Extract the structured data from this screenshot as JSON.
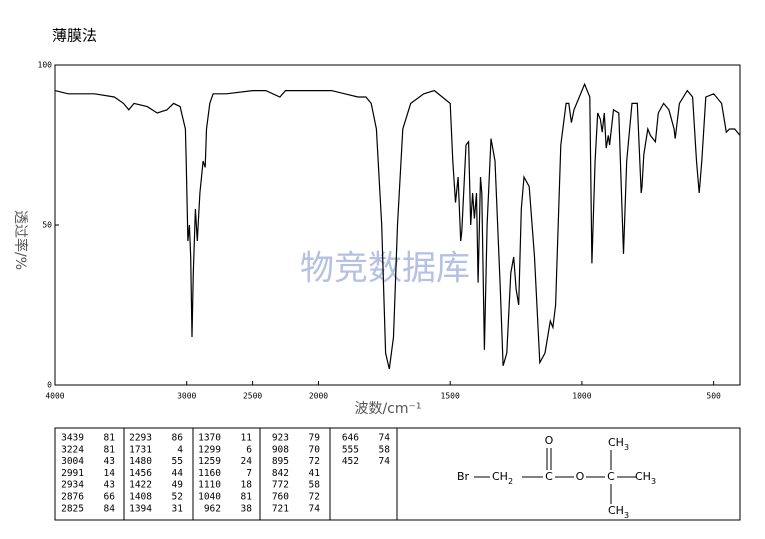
{
  "chart_data": {
    "type": "line",
    "title": "薄膜法",
    "ylabel": "透过率/%",
    "xlabel": "波数/cm⁻¹",
    "watermark": "物竞数据库",
    "xlim": [
      4000,
      400
    ],
    "x_scale_break": 2000,
    "x_scale_factor_below_break": 2,
    "xticks": [
      4000,
      3000,
      2500,
      2000,
      1500,
      1000,
      500
    ],
    "ylim": [
      0,
      100
    ],
    "yticks": [
      0,
      50,
      100
    ],
    "series": [
      {
        "name": null,
        "color": "#000000",
        "x": [
          4000,
          3900,
          3700,
          3550,
          3480,
          3440,
          3400,
          3300,
          3224,
          3150,
          3100,
          3050,
          3010,
          3004,
          2991,
          2980,
          2970,
          2960,
          2950,
          2934,
          2920,
          2900,
          2876,
          2860,
          2850,
          2825,
          2800,
          2700,
          2500,
          2400,
          2293,
          2250,
          2100,
          2000,
          1950,
          1900,
          1850,
          1820,
          1800,
          1780,
          1760,
          1745,
          1731,
          1715,
          1700,
          1680,
          1650,
          1600,
          1560,
          1500,
          1490,
          1480,
          1470,
          1460,
          1456,
          1440,
          1430,
          1422,
          1415,
          1408,
          1400,
          1394,
          1385,
          1380,
          1370,
          1360,
          1345,
          1330,
          1310,
          1299,
          1285,
          1270,
          1259,
          1250,
          1240,
          1230,
          1220,
          1200,
          1180,
          1160,
          1140,
          1120,
          1110,
          1100,
          1080,
          1060,
          1050,
          1040,
          1030,
          1010,
          990,
          970,
          962,
          950,
          940,
          930,
          923,
          915,
          908,
          900,
          895,
          880,
          860,
          842,
          830,
          810,
          790,
          775,
          772,
          765,
          750,
          740,
          721,
          710,
          690,
          670,
          650,
          646,
          630,
          600,
          580,
          565,
          555,
          545,
          530,
          500,
          470,
          452,
          440,
          420,
          400
        ],
        "values": [
          92,
          91,
          91,
          90,
          88,
          86,
          88,
          87,
          85,
          86,
          88,
          87,
          80,
          70,
          45,
          50,
          40,
          15,
          35,
          55,
          45,
          60,
          70,
          68,
          80,
          88,
          91,
          91,
          92,
          92,
          90,
          92,
          92,
          92,
          92,
          91,
          90,
          90,
          88,
          80,
          50,
          10,
          5,
          15,
          50,
          80,
          88,
          91,
          92,
          88,
          70,
          57,
          65,
          45,
          48,
          75,
          76,
          50,
          60,
          52,
          60,
          32,
          65,
          60,
          11,
          50,
          77,
          70,
          30,
          6,
          10,
          35,
          40,
          30,
          25,
          55,
          65,
          62,
          40,
          7,
          10,
          20,
          18,
          25,
          75,
          88,
          88,
          82,
          86,
          90,
          94,
          90,
          38,
          70,
          85,
          83,
          79,
          85,
          74,
          78,
          75,
          86,
          85,
          41,
          70,
          88,
          88,
          60,
          62,
          72,
          80,
          78,
          76,
          85,
          88,
          86,
          80,
          77,
          88,
          92,
          90,
          70,
          60,
          70,
          90,
          91,
          88,
          79,
          80,
          80,
          78
        ]
      }
    ]
  },
  "peak_table": [
    [
      [
        3439,
        81
      ],
      [
        3224,
        81
      ],
      [
        3004,
        43
      ],
      [
        2991,
        14
      ],
      [
        2934,
        43
      ],
      [
        2876,
        66
      ],
      [
        2825,
        84
      ]
    ],
    [
      [
        2293,
        86
      ],
      [
        1731,
        4
      ],
      [
        1480,
        55
      ],
      [
        1456,
        44
      ],
      [
        1422,
        49
      ],
      [
        1408,
        52
      ],
      [
        1394,
        31
      ]
    ],
    [
      [
        1370,
        11
      ],
      [
        1299,
        6
      ],
      [
        1259,
        24
      ],
      [
        1160,
        7
      ],
      [
        1110,
        18
      ],
      [
        1040,
        81
      ],
      [
        962,
        38
      ]
    ],
    [
      [
        923,
        79
      ],
      [
        908,
        70
      ],
      [
        895,
        72
      ],
      [
        842,
        41
      ],
      [
        772,
        58
      ],
      [
        760,
        72
      ],
      [
        721,
        74
      ]
    ],
    [
      [
        646,
        74
      ],
      [
        555,
        58
      ],
      [
        452,
        74
      ]
    ]
  ],
  "structure": {
    "atoms": [
      {
        "text": "Br"
      },
      {
        "text": "CH",
        "sub": "2"
      },
      {
        "text": "C"
      },
      {
        "text": "O"
      },
      {
        "text": "O"
      },
      {
        "text": "C"
      },
      {
        "text": "CH",
        "sub": "3"
      },
      {
        "text": "CH",
        "sub": "3"
      },
      {
        "text": "CH",
        "sub": "3"
      }
    ]
  }
}
